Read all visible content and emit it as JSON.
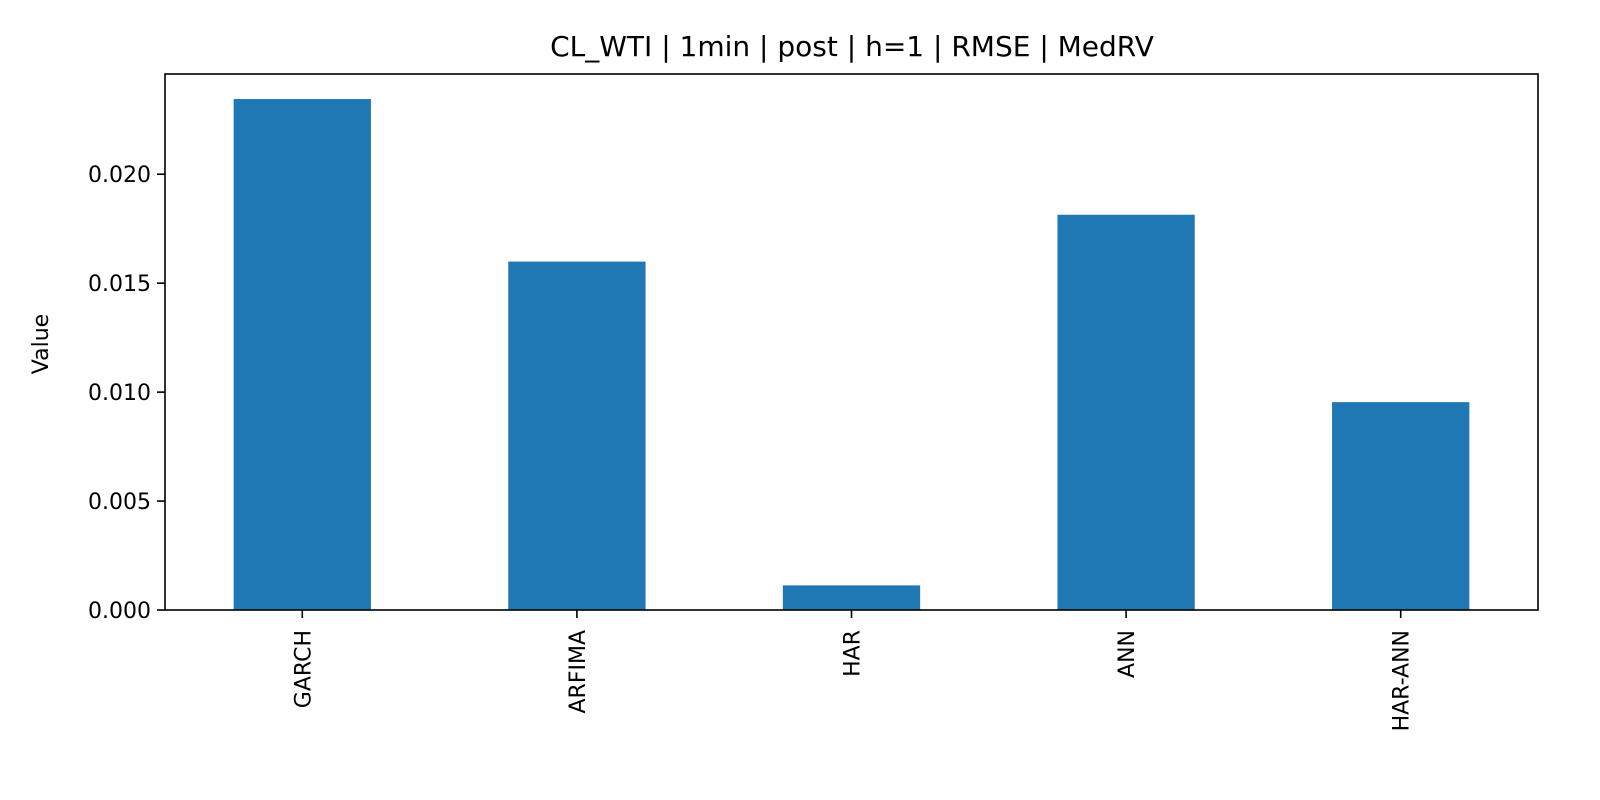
{
  "chart_data": {
    "type": "bar",
    "title": "CL_WTI | 1min | post | h=1 | RMSE | MedRV",
    "xlabel": "",
    "ylabel": "Value",
    "categories": [
      "GARCH",
      "ARFIMA",
      "HAR",
      "ANN",
      "HAR-ANN"
    ],
    "values": [
      0.02345,
      0.01599,
      0.00113,
      0.01814,
      0.00954
    ],
    "ylim": [
      0,
      0.0246
    ],
    "yticks": [
      0.0,
      0.005,
      0.01,
      0.015,
      0.02
    ],
    "ytick_labels": [
      "0.000",
      "0.005",
      "0.010",
      "0.015",
      "0.020"
    ],
    "bar_color": "#1f77b4",
    "grid": false,
    "legend": "none"
  }
}
